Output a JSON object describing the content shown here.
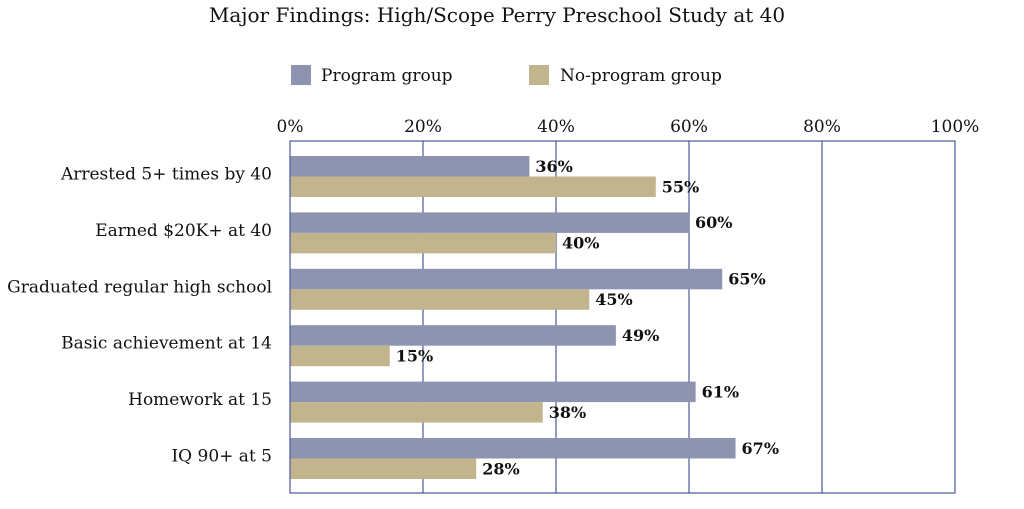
{
  "chart_data": {
    "type": "bar",
    "orientation": "horizontal",
    "title": "Major Findings: High/Scope Perry Preschool Study at 40",
    "xlabel": "",
    "ylabel": "",
    "xlim": [
      0,
      100
    ],
    "ticks": [
      "0%",
      "20%",
      "40%",
      "60%",
      "80%",
      "100%"
    ],
    "grid": true,
    "legend_position": "top",
    "categories": [
      "Arrested 5+ times by 40",
      "Earned $20K+ at 40",
      "Graduated regular high school",
      "Basic achievement at 14",
      "Homework at 15",
      "IQ 90+ at 5"
    ],
    "series": [
      {
        "name": "Program group",
        "color": "#8e94b0",
        "values": [
          36,
          60,
          65,
          49,
          61,
          67
        ],
        "labels": [
          "36%",
          "60%",
          "65%",
          "49%",
          "61%",
          "67%"
        ]
      },
      {
        "name": "No-program group",
        "color": "#c2b48c",
        "values": [
          55,
          40,
          45,
          15,
          38,
          28
        ],
        "labels": [
          "55%",
          "40%",
          "45%",
          "15%",
          "38%",
          "28%"
        ]
      }
    ]
  }
}
